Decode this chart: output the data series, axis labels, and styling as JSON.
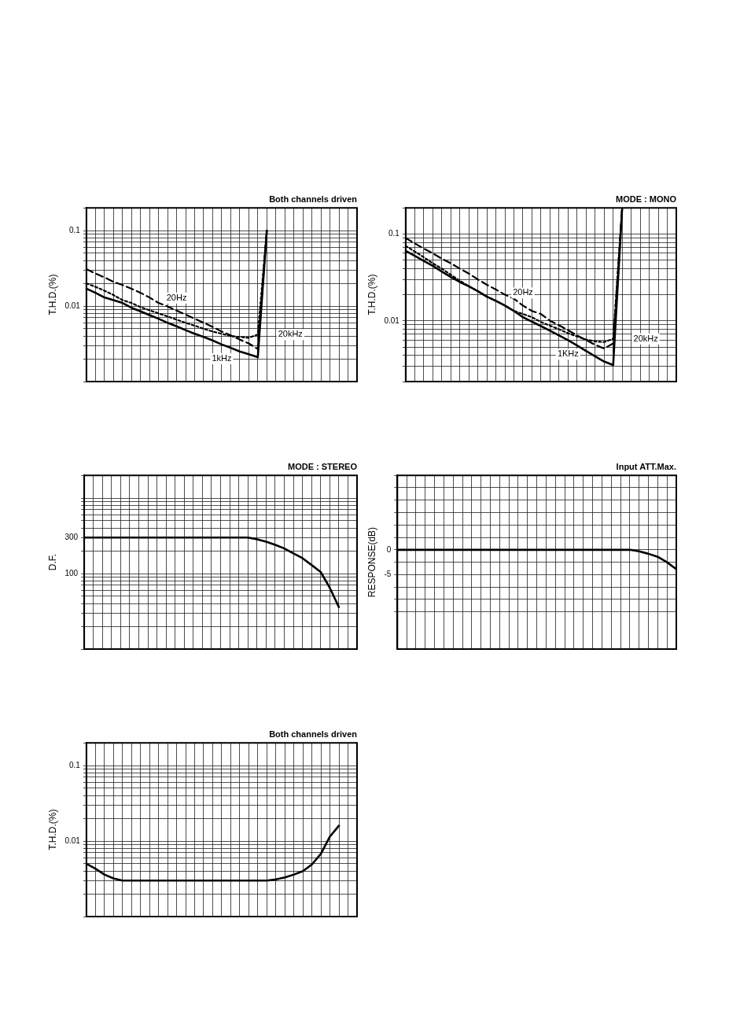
{
  "chart_data": [
    {
      "type": "line",
      "title": "Both channels driven",
      "ylabel": "T.H.D.(%)",
      "log": true,
      "grid": true,
      "marker": "none",
      "tick_labels": "y",
      "categories": [
        null,
        null,
        null,
        null,
        null,
        null,
        null,
        null,
        null,
        null,
        null,
        null,
        null,
        null,
        null,
        null,
        null,
        null,
        null,
        null,
        null,
        null,
        null,
        null,
        null,
        null,
        null,
        null,
        null,
        null,
        null
      ],
      "ylim": [
        0.001,
        0.2
      ],
      "yticks": [
        {
          "value": 0.001,
          "label": null
        },
        {
          "value": 0.002,
          "label": null
        },
        {
          "value": 0.003,
          "label": null
        },
        {
          "value": 0.004,
          "label": null
        },
        {
          "value": 0.005,
          "label": null
        },
        {
          "value": 0.006,
          "label": null
        },
        {
          "value": 0.007,
          "label": null
        },
        {
          "value": 0.008,
          "label": null
        },
        {
          "value": 0.009,
          "label": null
        },
        0.01,
        {
          "value": 0.02,
          "label": null
        },
        {
          "value": 0.03,
          "label": null
        },
        {
          "value": 0.04,
          "label": null
        },
        {
          "value": 0.05,
          "label": null
        },
        {
          "value": 0.06,
          "label": null
        },
        {
          "value": 0.07,
          "label": null
        },
        {
          "value": 0.08,
          "label": null
        },
        {
          "value": 0.09,
          "label": null
        },
        0.1,
        {
          "value": 0.2,
          "label": null
        }
      ],
      "series": [
        {
          "name": "1kHz",
          "color": "#000000",
          "line_style": "solid",
          "values": [
            0.017,
            0.015,
            0.013,
            0.012,
            0.011,
            0.0095,
            0.0085,
            0.0076,
            0.0068,
            0.006,
            0.0054,
            0.0048,
            0.0043,
            0.0039,
            0.0035,
            0.0031,
            0.0028,
            0.0025,
            0.0023,
            0.0021,
            0.1,
            null,
            null,
            null,
            null,
            null,
            null,
            null,
            null,
            null,
            null
          ]
        },
        {
          "name": "20Hz",
          "color": "#000000",
          "line_style": "dashed",
          "values": [
            0.031,
            0.027,
            0.024,
            0.021,
            0.019,
            0.017,
            0.015,
            0.013,
            0.011,
            0.0099,
            0.0087,
            0.0077,
            0.0068,
            0.006,
            0.0053,
            0.0046,
            0.0041,
            0.0036,
            0.0032,
            0.0027,
            0.1,
            null,
            null,
            null,
            null,
            null,
            null,
            null,
            null,
            null,
            null
          ]
        },
        {
          "name": "20kHz",
          "color": "#000000",
          "line_style": "dotted",
          "values": [
            0.02,
            0.018,
            0.016,
            0.014,
            0.012,
            0.011,
            0.0097,
            0.0088,
            0.008,
            0.0073,
            0.0066,
            0.006,
            0.0055,
            0.005,
            0.0046,
            0.0043,
            0.004,
            0.0039,
            0.0038,
            0.0042,
            0.1,
            null,
            null,
            null,
            null,
            null,
            null,
            null,
            null,
            null,
            null
          ]
        }
      ]
    },
    {
      "type": "line",
      "title": "MODE : MONO",
      "ylabel": "T.H.D.(%)",
      "log": true,
      "grid": true,
      "marker": "none",
      "tick_labels": "y",
      "categories": [
        null,
        null,
        null,
        null,
        null,
        null,
        null,
        null,
        null,
        null,
        null,
        null,
        null,
        null,
        null,
        null,
        null,
        null,
        null,
        null,
        null,
        null,
        null,
        null,
        null,
        null,
        null,
        null,
        null,
        null,
        null
      ],
      "ylim": [
        0.002,
        0.2
      ],
      "yticks": [
        {
          "value": 0.002,
          "label": null
        },
        {
          "value": 0.003,
          "label": null
        },
        {
          "value": 0.004,
          "label": null
        },
        {
          "value": 0.005,
          "label": null
        },
        {
          "value": 0.006,
          "label": null
        },
        {
          "value": 0.007,
          "label": null
        },
        {
          "value": 0.008,
          "label": null
        },
        {
          "value": 0.009,
          "label": null
        },
        0.01,
        {
          "value": 0.02,
          "label": null
        },
        {
          "value": 0.03,
          "label": null
        },
        {
          "value": 0.04,
          "label": null
        },
        {
          "value": 0.05,
          "label": null
        },
        {
          "value": 0.06,
          "label": null
        },
        {
          "value": 0.07,
          "label": null
        },
        {
          "value": 0.08,
          "label": null
        },
        {
          "value": 0.09,
          "label": null
        },
        0.1,
        {
          "value": 0.2,
          "label": null
        }
      ],
      "series": [
        {
          "name": "1KHz",
          "color": "#000000",
          "line_style": "solid",
          "values": [
            0.064,
            0.056,
            0.049,
            0.043,
            0.037,
            0.032,
            0.028,
            0.025,
            0.022,
            0.019,
            0.017,
            0.015,
            0.013,
            0.011,
            0.0098,
            0.0087,
            0.0077,
            0.0068,
            0.006,
            0.0052,
            0.0045,
            0.0039,
            0.0034,
            0.0031,
            0.2,
            null,
            null,
            null,
            null,
            null,
            null
          ]
        },
        {
          "name": "20Hz",
          "color": "#000000",
          "line_style": "dashed",
          "values": [
            0.09,
            0.078,
            0.068,
            0.06,
            0.052,
            0.046,
            0.04,
            0.035,
            0.03,
            0.026,
            0.023,
            0.02,
            0.018,
            0.015,
            0.013,
            0.012,
            0.01,
            0.0089,
            0.0078,
            0.0068,
            0.006,
            0.0053,
            0.0048,
            0.0055,
            0.2,
            null,
            null,
            null,
            null,
            null,
            null
          ]
        },
        {
          "name": "20kHz",
          "color": "#000000",
          "line_style": "dotted",
          "values": [
            0.073,
            0.063,
            0.054,
            0.046,
            0.04,
            0.034,
            0.029,
            0.025,
            0.022,
            0.019,
            0.017,
            0.015,
            0.013,
            0.012,
            0.011,
            0.0097,
            0.0088,
            0.008,
            0.0072,
            0.0066,
            0.0061,
            0.0058,
            0.0057,
            0.0062,
            0.2,
            null,
            null,
            null,
            null,
            null,
            null
          ]
        }
      ]
    },
    {
      "type": "line",
      "title": "MODE : STEREO",
      "ylabel": "D.F.",
      "log": true,
      "grid": true,
      "marker": "none",
      "tick_labels": "y",
      "categories": [
        null,
        null,
        null,
        null,
        null,
        null,
        null,
        null,
        null,
        null,
        null,
        null,
        null,
        null,
        null,
        null,
        null,
        null,
        null,
        null,
        null,
        null,
        null,
        null,
        null,
        null,
        null,
        null,
        null,
        null,
        null
      ],
      "ylim": [
        10,
        2000
      ],
      "yticks": [
        {
          "value": 10,
          "label": null
        },
        {
          "value": 20,
          "label": null
        },
        {
          "value": 30,
          "label": null
        },
        {
          "value": 40,
          "label": null
        },
        {
          "value": 50,
          "label": null
        },
        {
          "value": 60,
          "label": null
        },
        {
          "value": 70,
          "label": null
        },
        {
          "value": 80,
          "label": null
        },
        {
          "value": 90,
          "label": null
        },
        100,
        {
          "value": 200,
          "label": null
        },
        300,
        {
          "value": 400,
          "label": null
        },
        {
          "value": 500,
          "label": null
        },
        {
          "value": 600,
          "label": null
        },
        {
          "value": 700,
          "label": null
        },
        {
          "value": 800,
          "label": null
        },
        {
          "value": 900,
          "label": null
        },
        {
          "value": 1000,
          "label": null
        },
        {
          "value": 2000,
          "label": null
        }
      ],
      "series": [
        {
          "color": "#000000",
          "line_style": "solid",
          "values": [
            300,
            300,
            300,
            300,
            300,
            300,
            300,
            300,
            300,
            300,
            300,
            300,
            300,
            300,
            300,
            300,
            300,
            300,
            300,
            285,
            265,
            240,
            215,
            185,
            160,
            130,
            105,
            65,
            36,
            null,
            null
          ]
        }
      ]
    },
    {
      "type": "line",
      "title": "Input ATT.Max.",
      "ylabel": "RESPONSE(dB)",
      "grid": true,
      "marker": "none",
      "tick_labels": "y",
      "categories": [
        null,
        null,
        null,
        null,
        null,
        null,
        null,
        null,
        null,
        null,
        null,
        null,
        null,
        null,
        null,
        null,
        null,
        null,
        null,
        null,
        null,
        null,
        null,
        null,
        null,
        null,
        null,
        null,
        null,
        null,
        null
      ],
      "ylim": [
        -20,
        15
      ],
      "yticks": [
        {
          "value": -12.5,
          "label": null
        },
        {
          "value": -10,
          "label": null
        },
        {
          "value": -7.5,
          "label": null
        },
        -5,
        {
          "value": -2.5,
          "label": null
        },
        0,
        {
          "value": 2.5,
          "label": null
        },
        {
          "value": 5,
          "label": null
        },
        {
          "value": 7.5,
          "label": null
        },
        {
          "value": 10,
          "label": null
        },
        {
          "value": 12.5,
          "label": null
        },
        {
          "value": 15,
          "label": null
        }
      ],
      "series": [
        {
          "color": "#000000",
          "line_style": "solid",
          "values": [
            0,
            0,
            0,
            0,
            0,
            0,
            0,
            0,
            0,
            0,
            0,
            0,
            0,
            0,
            0,
            0,
            0,
            0,
            0,
            0,
            0,
            0,
            0,
            0,
            0,
            0,
            -0.3,
            -0.8,
            -1.4,
            -2.5,
            -3.9
          ]
        }
      ]
    },
    {
      "type": "line",
      "title": "Both channels driven",
      "ylabel": "T.H.D.(%)",
      "log": true,
      "grid": true,
      "marker": "none",
      "tick_labels": "y",
      "categories": [
        null,
        null,
        null,
        null,
        null,
        null,
        null,
        null,
        null,
        null,
        null,
        null,
        null,
        null,
        null,
        null,
        null,
        null,
        null,
        null,
        null,
        null,
        null,
        null,
        null,
        null,
        null,
        null,
        null,
        null,
        null
      ],
      "ylim": [
        0.001,
        0.2
      ],
      "yticks": [
        {
          "value": 0.001,
          "label": null
        },
        {
          "value": 0.002,
          "label": null
        },
        {
          "value": 0.003,
          "label": null
        },
        {
          "value": 0.004,
          "label": null
        },
        {
          "value": 0.005,
          "label": null
        },
        {
          "value": 0.006,
          "label": null
        },
        {
          "value": 0.007,
          "label": null
        },
        {
          "value": 0.008,
          "label": null
        },
        {
          "value": 0.009,
          "label": null
        },
        0.01,
        {
          "value": 0.02,
          "label": null
        },
        {
          "value": 0.03,
          "label": null
        },
        {
          "value": 0.04,
          "label": null
        },
        {
          "value": 0.05,
          "label": null
        },
        {
          "value": 0.06,
          "label": null
        },
        {
          "value": 0.07,
          "label": null
        },
        {
          "value": 0.08,
          "label": null
        },
        {
          "value": 0.09,
          "label": null
        },
        0.1,
        {
          "value": 0.2,
          "label": null
        }
      ],
      "series": [
        {
          "color": "#000000",
          "line_style": "solid",
          "values": [
            0.005,
            0.0043,
            0.0036,
            0.0032,
            0.003,
            0.003,
            0.003,
            0.003,
            0.003,
            0.003,
            0.003,
            0.003,
            0.003,
            0.003,
            0.003,
            0.003,
            0.003,
            0.003,
            0.003,
            0.003,
            0.003,
            0.0031,
            0.0033,
            0.0036,
            0.004,
            0.0049,
            0.0068,
            0.0115,
            0.016,
            null,
            null
          ]
        }
      ]
    }
  ]
}
